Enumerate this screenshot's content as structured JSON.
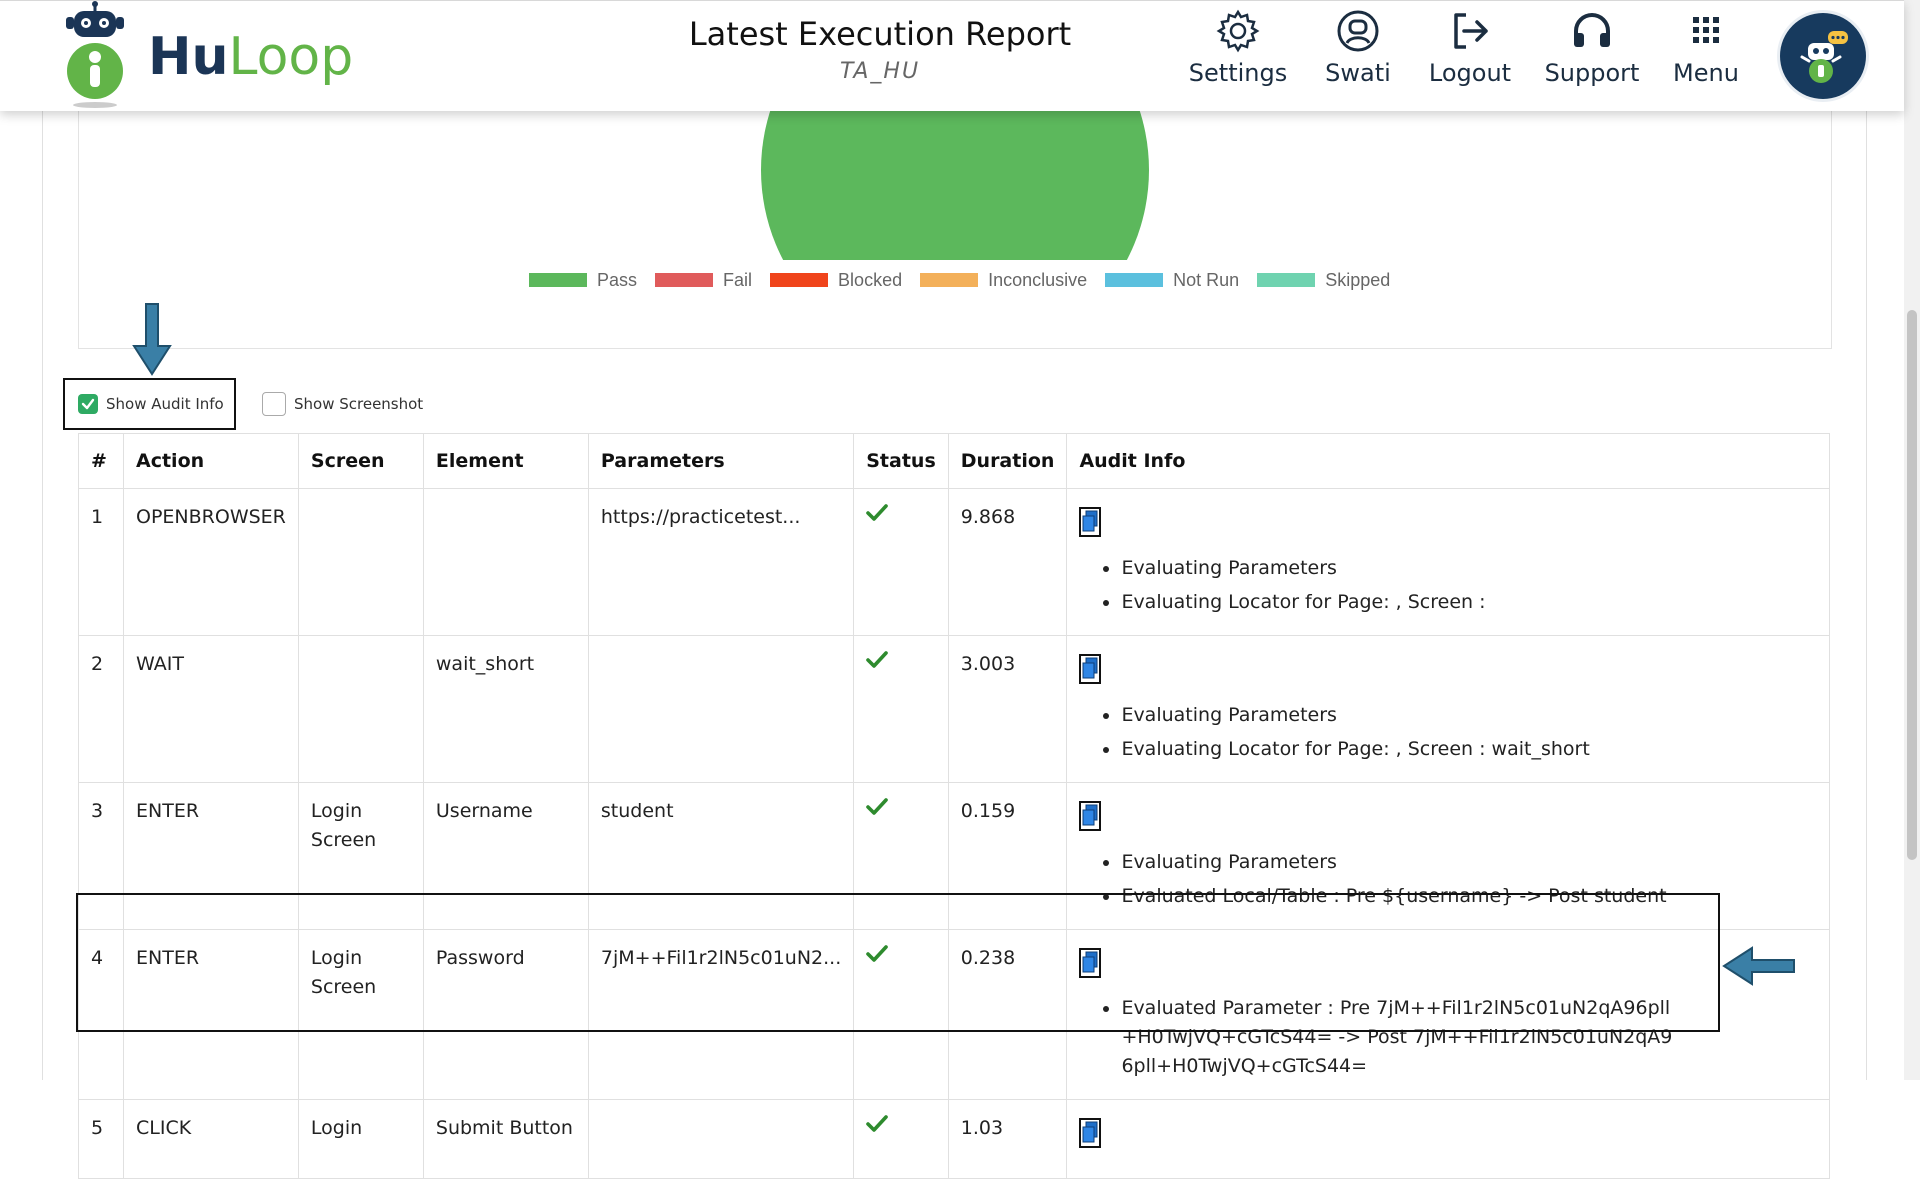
{
  "header": {
    "logo": {
      "hu": "Hu",
      "loop": "Loop"
    },
    "title": "Latest Execution Report",
    "subtitle": "TA_HU",
    "nav": [
      {
        "label": "Settings",
        "icon": "gear-icon"
      },
      {
        "label": "Swati",
        "icon": "user-icon"
      },
      {
        "label": "Logout",
        "icon": "logout-icon"
      },
      {
        "label": "Support",
        "icon": "headset-icon"
      },
      {
        "label": "Menu",
        "icon": "grid-icon"
      }
    ],
    "avatar_icon": "robot-chat-icon"
  },
  "chart_data": {
    "type": "pie",
    "categories": [
      "Pass",
      "Fail",
      "Blocked",
      "Inconclusive",
      "Not Run",
      "Skipped"
    ],
    "values": [
      1,
      0,
      0,
      0,
      0,
      0
    ],
    "colors": [
      "#5cb85c",
      "#e05b5b",
      "#f0441b",
      "#f3b05a",
      "#5bc0de",
      "#6fd3b0"
    ],
    "legend_position": "bottom"
  },
  "options": {
    "show_audit_info": {
      "label": "Show Audit Info",
      "checked": true
    },
    "show_screenshot": {
      "label": "Show Screenshot",
      "checked": false
    }
  },
  "table": {
    "headers": [
      "#",
      "Action",
      "Screen",
      "Element",
      "Parameters",
      "Status",
      "Duration",
      "Audit Info"
    ],
    "rows": [
      {
        "num": "1",
        "action": "OPENBROWSER",
        "screen": "",
        "element": "",
        "parameters": "https://practicetest...",
        "status": "pass",
        "duration": "9.868",
        "audit": [
          "Evaluating Parameters",
          "Evaluating Locator for Page: , Screen :"
        ]
      },
      {
        "num": "2",
        "action": "WAIT",
        "screen": "",
        "element": "wait_short",
        "parameters": "",
        "status": "pass",
        "duration": "3.003",
        "audit": [
          "Evaluating Parameters",
          "Evaluating Locator for Page: , Screen : wait_short"
        ]
      },
      {
        "num": "3",
        "action": "ENTER",
        "screen": "Login Screen",
        "element": "Username",
        "parameters": "student",
        "status": "pass",
        "duration": "0.159",
        "audit": [
          "Evaluating Parameters",
          "Evaluated Local/Table : Pre ${username} -> Post student"
        ]
      },
      {
        "num": "4",
        "action": "ENTER",
        "screen": "Login Screen",
        "element": "Password",
        "parameters": "7jM++Fil1r2lN5c01uN2...",
        "status": "pass",
        "duration": "0.238",
        "audit": [
          "Evaluated Parameter : Pre 7jM++Fil1r2lN5c01uN2qA96pll+H0TwjVQ+cGTcS44= -> Post 7jM++Fil1r2lN5c01uN2qA96pll+H0TwjVQ+cGTcS44="
        ]
      },
      {
        "num": "5",
        "action": "CLICK",
        "screen": "Login",
        "element": "Submit Button",
        "parameters": "",
        "status": "pass",
        "duration": "1.03",
        "audit": []
      }
    ]
  }
}
